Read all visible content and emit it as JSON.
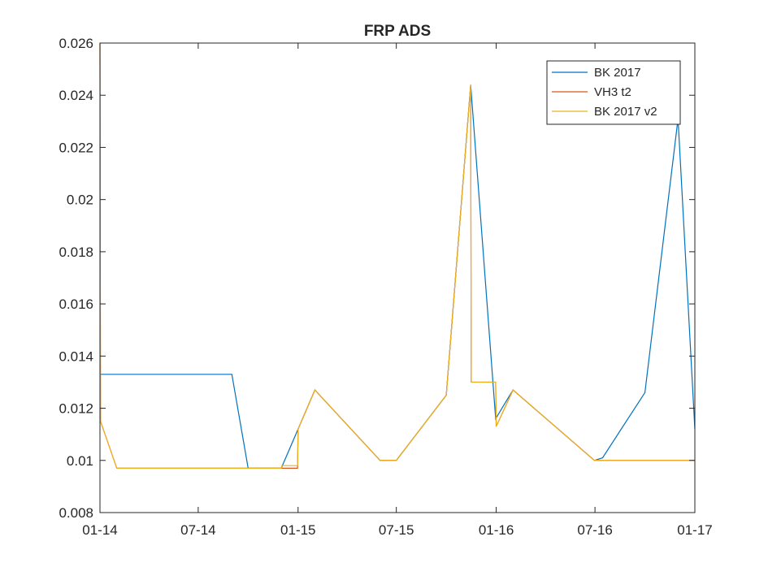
{
  "chart_data": {
    "type": "line",
    "title": "FRP ADS",
    "xlabel": "",
    "ylabel": "",
    "x_tick_labels": [
      "01-14",
      "07-14",
      "01-15",
      "07-15",
      "01-16",
      "07-16",
      "01-17"
    ],
    "x_tick_dates": [
      "2014-01-01",
      "2014-07-01",
      "2015-01-01",
      "2015-07-01",
      "2016-01-01",
      "2016-07-01",
      "2017-01-01"
    ],
    "xlim": [
      "2014-01-01",
      "2017-01-01"
    ],
    "y_tick_labels": [
      "0.008",
      "0.01",
      "0.012",
      "0.014",
      "0.016",
      "0.018",
      "0.02",
      "0.022",
      "0.024",
      "0.026"
    ],
    "y_ticks": [
      0.008,
      0.01,
      0.012,
      0.014,
      0.016,
      0.018,
      0.02,
      0.022,
      0.024,
      0.026
    ],
    "ylim": [
      0.008,
      0.026
    ],
    "grid": false,
    "legend_position": "top-right",
    "series": [
      {
        "name": "BK 2017",
        "color": "#0072BD",
        "points": [
          [
            "2014-01-01",
            0.0133
          ],
          [
            "2014-09-01",
            0.0133
          ],
          [
            "2014-10-01",
            0.0097
          ],
          [
            "2014-12-01",
            0.0097
          ],
          [
            "2015-01-01",
            0.0112
          ],
          [
            "2015-02-01",
            0.0127
          ],
          [
            "2015-06-01",
            0.01
          ],
          [
            "2015-07-01",
            0.01
          ],
          [
            "2015-10-01",
            0.0125
          ],
          [
            "2015-11-15",
            0.0244
          ],
          [
            "2015-12-31",
            0.0116
          ],
          [
            "2016-02-01",
            0.0127
          ],
          [
            "2016-06-30",
            0.01
          ],
          [
            "2016-07-15",
            0.0101
          ],
          [
            "2016-10-01",
            0.0126
          ],
          [
            "2016-12-01",
            0.0231
          ],
          [
            "2017-01-01",
            0.0112
          ]
        ]
      },
      {
        "name": "VH3 t2",
        "color": "#D95319",
        "points": [
          [
            "2014-01-01",
            0.026
          ],
          [
            "2014-01-02",
            0.0115
          ],
          [
            "2014-02-01",
            0.0097
          ],
          [
            "2014-12-31",
            0.0097
          ],
          [
            "2015-01-01",
            0.0112
          ],
          [
            "2015-02-01",
            0.0127
          ],
          [
            "2015-06-01",
            0.01
          ],
          [
            "2015-07-01",
            0.01
          ],
          [
            "2015-10-01",
            0.0125
          ],
          [
            "2015-11-15",
            0.0244
          ],
          [
            "2015-11-16",
            0.013
          ],
          [
            "2015-12-31",
            0.013
          ],
          [
            "2016-01-01",
            0.0113
          ],
          [
            "2016-02-01",
            0.0127
          ],
          [
            "2016-06-30",
            0.01
          ],
          [
            "2017-01-01",
            0.01
          ]
        ]
      },
      {
        "name": "BK 2017 v2",
        "color": "#EDB120",
        "points": [
          [
            "2014-01-01",
            0.026
          ],
          [
            "2014-01-02",
            0.0115
          ],
          [
            "2014-02-01",
            0.0097
          ],
          [
            "2014-12-01",
            0.0097
          ],
          [
            "2014-12-02",
            0.0098
          ],
          [
            "2014-12-31",
            0.0098
          ],
          [
            "2015-01-01",
            0.0112
          ],
          [
            "2015-02-01",
            0.0127
          ],
          [
            "2015-06-01",
            0.01
          ],
          [
            "2015-07-01",
            0.01
          ],
          [
            "2015-10-01",
            0.0125
          ],
          [
            "2015-11-15",
            0.0244
          ],
          [
            "2015-11-16",
            0.013
          ],
          [
            "2015-12-31",
            0.013
          ],
          [
            "2016-01-01",
            0.0113
          ],
          [
            "2016-02-01",
            0.0127
          ],
          [
            "2016-06-30",
            0.01
          ],
          [
            "2017-01-01",
            0.01
          ]
        ]
      }
    ]
  }
}
